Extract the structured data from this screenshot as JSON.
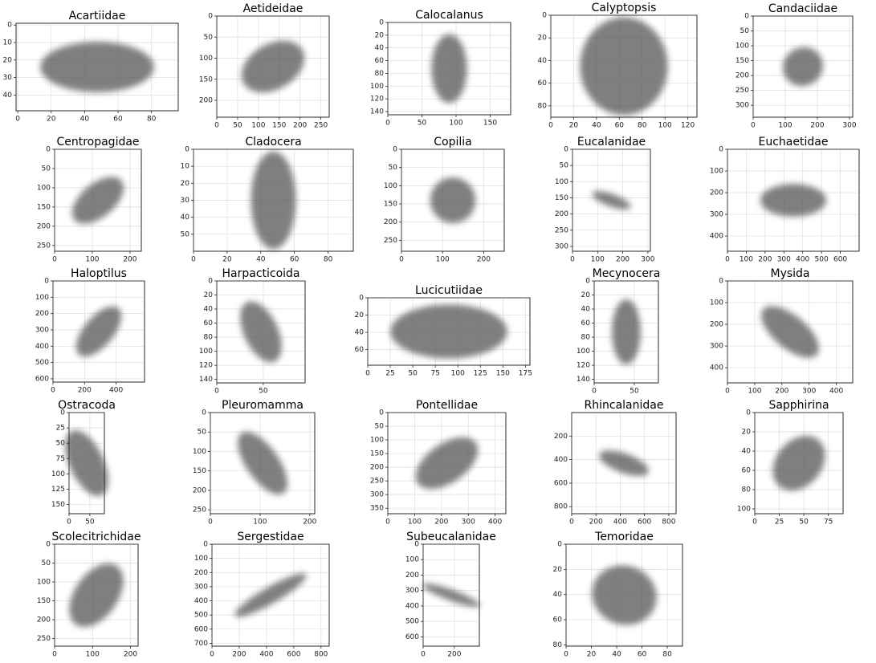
{
  "chart_data": [
    {
      "type": "image",
      "title": "Acartiidae",
      "xlim": [
        -1,
        96
      ],
      "ylim": [
        49,
        -1
      ],
      "xticks": [
        0,
        20,
        40,
        60,
        80
      ],
      "yticks": [
        0,
        10,
        20,
        30,
        40
      ],
      "grid": true
    },
    {
      "type": "image",
      "title": "Aetideidae",
      "xlim": [
        0,
        270
      ],
      "ylim": [
        240,
        0
      ],
      "xticks": [
        0,
        50,
        100,
        150,
        200,
        250
      ],
      "yticks": [
        0,
        50,
        100,
        150,
        200
      ],
      "grid": true
    },
    {
      "type": "image",
      "title": "Calocalanus",
      "xlim": [
        0,
        180
      ],
      "ylim": [
        145,
        0
      ],
      "xticks": [
        0,
        50,
        100,
        150
      ],
      "yticks": [
        0,
        20,
        40,
        60,
        80,
        100,
        120,
        140
      ],
      "grid": true
    },
    {
      "type": "image",
      "title": "Calyptopsis",
      "xlim": [
        0,
        128
      ],
      "ylim": [
        90,
        0
      ],
      "xticks": [
        0,
        20,
        40,
        60,
        80,
        100,
        120
      ],
      "yticks": [
        0,
        20,
        40,
        60,
        80
      ],
      "grid": true
    },
    {
      "type": "image",
      "title": "Candaciidae",
      "xlim": [
        0,
        310
      ],
      "ylim": [
        340,
        0
      ],
      "xticks": [
        0,
        100,
        200,
        300
      ],
      "yticks": [
        0,
        50,
        100,
        150,
        200,
        250,
        300
      ],
      "grid": true
    },
    {
      "type": "image",
      "title": "Centropagidae",
      "xlim": [
        0,
        230
      ],
      "ylim": [
        265,
        0
      ],
      "xticks": [
        0,
        100,
        200
      ],
      "yticks": [
        0,
        50,
        100,
        150,
        200,
        250
      ],
      "grid": true
    },
    {
      "type": "image",
      "title": "Cladocera",
      "xlim": [
        0,
        95
      ],
      "ylim": [
        60,
        0
      ],
      "xticks": [
        0,
        20,
        40,
        60,
        80
      ],
      "yticks": [
        0,
        10,
        20,
        30,
        40,
        50
      ],
      "grid": true
    },
    {
      "type": "image",
      "title": "Copilia",
      "xlim": [
        0,
        250
      ],
      "ylim": [
        280,
        0
      ],
      "xticks": [
        0,
        100,
        200
      ],
      "yticks": [
        0,
        50,
        100,
        150,
        200,
        250
      ],
      "grid": true
    },
    {
      "type": "image",
      "title": "Eucalanidae",
      "xlim": [
        0,
        310
      ],
      "ylim": [
        315,
        0
      ],
      "xticks": [
        0,
        100,
        200,
        300
      ],
      "yticks": [
        0,
        50,
        100,
        150,
        200,
        250,
        300
      ],
      "grid": true
    },
    {
      "type": "image",
      "title": "Euchaetidae",
      "xlim": [
        0,
        700
      ],
      "ylim": [
        470,
        0
      ],
      "xticks": [
        0,
        100,
        200,
        300,
        400,
        500,
        600
      ],
      "yticks": [
        0,
        100,
        200,
        300,
        400
      ],
      "grid": true
    },
    {
      "type": "image",
      "title": "Haloptilus",
      "xlim": [
        0,
        580
      ],
      "ylim": [
        620,
        0
      ],
      "xticks": [
        0,
        200,
        400
      ],
      "yticks": [
        0,
        100,
        200,
        300,
        400,
        500,
        600
      ],
      "grid": true
    },
    {
      "type": "image",
      "title": "Harpacticoida",
      "xlim": [
        0,
        95
      ],
      "ylim": [
        145,
        0
      ],
      "xticks": [
        0,
        50
      ],
      "yticks": [
        0,
        20,
        40,
        60,
        80,
        100,
        120,
        140
      ],
      "grid": true
    },
    {
      "type": "image",
      "title": "Lucicutiidae",
      "xlim": [
        0,
        180
      ],
      "ylim": [
        78,
        0
      ],
      "xticks": [
        0,
        25,
        50,
        75,
        100,
        125,
        150,
        175
      ],
      "yticks": [
        0,
        20,
        40,
        60
      ],
      "grid": true
    },
    {
      "type": "image",
      "title": "Mecynocera",
      "xlim": [
        0,
        80
      ],
      "ylim": [
        145,
        0
      ],
      "xticks": [
        0,
        50
      ],
      "yticks": [
        0,
        20,
        40,
        60,
        80,
        100,
        120,
        140
      ],
      "grid": true
    },
    {
      "type": "image",
      "title": "Mysida",
      "xlim": [
        0,
        460
      ],
      "ylim": [
        470,
        0
      ],
      "xticks": [
        0,
        100,
        200,
        300,
        400
      ],
      "yticks": [
        0,
        100,
        200,
        300,
        400
      ],
      "grid": true
    },
    {
      "type": "image",
      "title": "Ostracoda",
      "xlim": [
        0,
        85
      ],
      "ylim": [
        165,
        0
      ],
      "xticks": [
        0,
        50
      ],
      "yticks": [
        0,
        25,
        50,
        75,
        100,
        125,
        150
      ],
      "grid": true
    },
    {
      "type": "image",
      "title": "Pleuromamma",
      "xlim": [
        0,
        210
      ],
      "ylim": [
        260,
        0
      ],
      "xticks": [
        0,
        100,
        200
      ],
      "yticks": [
        0,
        50,
        100,
        150,
        200,
        250
      ],
      "grid": true
    },
    {
      "type": "image",
      "title": "Pontellidae",
      "xlim": [
        0,
        440
      ],
      "ylim": [
        370,
        0
      ],
      "xticks": [
        0,
        100,
        200,
        300,
        400
      ],
      "yticks": [
        0,
        50,
        100,
        150,
        200,
        250,
        300,
        350
      ],
      "grid": true
    },
    {
      "type": "image",
      "title": "Rhincalanidae",
      "xlim": [
        0,
        860
      ],
      "ylim": [
        860,
        0
      ],
      "xticks": [
        0,
        200,
        400,
        600,
        800
      ],
      "yticks": [
        200,
        400,
        600,
        800
      ],
      "grid": true
    },
    {
      "type": "image",
      "title": "Sapphirina",
      "xlim": [
        0,
        90
      ],
      "ylim": [
        105,
        0
      ],
      "xticks": [
        0,
        25,
        50,
        75
      ],
      "yticks": [
        0,
        20,
        40,
        60,
        80,
        100
      ],
      "grid": true
    },
    {
      "type": "image",
      "title": "Scolecitrichidae",
      "xlim": [
        0,
        220
      ],
      "ylim": [
        270,
        0
      ],
      "xticks": [
        0,
        100,
        200
      ],
      "yticks": [
        0,
        50,
        100,
        150,
        200,
        250
      ],
      "grid": true
    },
    {
      "type": "image",
      "title": "Sergestidae",
      "xlim": [
        0,
        860
      ],
      "ylim": [
        720,
        0
      ],
      "xticks": [
        0,
        200,
        400,
        600,
        800
      ],
      "yticks": [
        0,
        100,
        200,
        300,
        400,
        500,
        600,
        700
      ],
      "grid": true
    },
    {
      "type": "image",
      "title": "Subeucalanidae",
      "xlim": [
        0,
        360
      ],
      "ylim": [
        660,
        0
      ],
      "xticks": [
        0,
        200
      ],
      "yticks": [
        0,
        100,
        200,
        300,
        400,
        500,
        600
      ],
      "grid": true
    },
    {
      "type": "image",
      "title": "Temoridae",
      "xlim": [
        0,
        92
      ],
      "ylim": [
        81,
        0
      ],
      "xticks": [
        0,
        20,
        40,
        60,
        80
      ],
      "yticks": [
        0,
        20,
        40,
        60,
        80
      ],
      "grid": true
    }
  ]
}
